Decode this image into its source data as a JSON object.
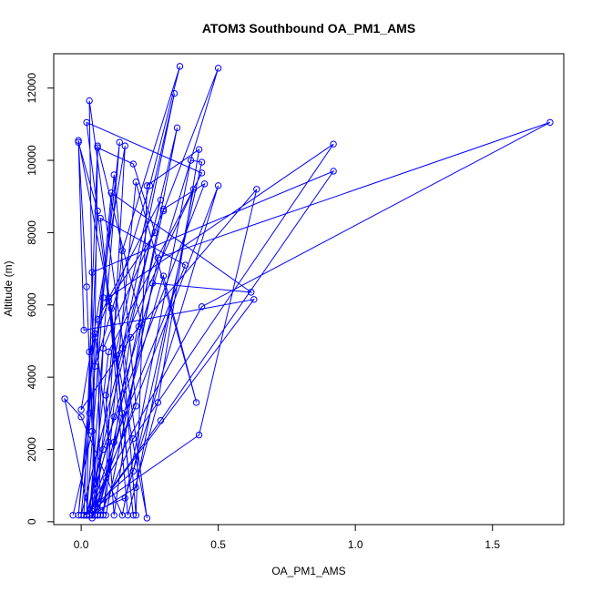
{
  "chart_data": {
    "type": "line",
    "title": "ATOM3 Southbound OA_PM1_AMS",
    "xlabel": "OA_PM1_AMS",
    "ylabel": "Altitude (m)",
    "xlim": [
      -0.1,
      1.76
    ],
    "ylim": [
      -80,
      12950
    ],
    "xticks": [
      0.0,
      0.5,
      1.0,
      1.5
    ],
    "xtick_labels": [
      "0.0",
      "0.5",
      "1.0",
      "1.5"
    ],
    "yticks": [
      0,
      2000,
      4000,
      6000,
      8000,
      10000,
      12000
    ],
    "ytick_labels": [
      "0",
      "2000",
      "4000",
      "6000",
      "8000",
      "10000",
      "12000"
    ],
    "grid": false,
    "legend": "none",
    "colors": {
      "series": "#0000ff"
    },
    "series": [
      {
        "points": [
          [
            -0.03,
            180
          ],
          [
            0.04,
            2500
          ],
          [
            0.02,
            6500
          ],
          [
            -0.01,
            10500
          ],
          [
            0.06,
            8600
          ],
          [
            0.03,
            3000
          ],
          [
            -0.01,
            180
          ],
          [
            0.05,
            5200
          ],
          [
            0.1,
            2200
          ],
          [
            0.02,
            180
          ],
          [
            0.08,
            6200
          ],
          [
            0.12,
            9600
          ],
          [
            0.2,
            3200
          ],
          [
            0.03,
            180
          ],
          [
            0.14,
            10500
          ],
          [
            0.05,
            4300
          ],
          [
            0.25,
            9300
          ],
          [
            0.36,
            12600
          ],
          [
            0.15,
            7500
          ],
          [
            0.05,
            180
          ],
          [
            0.08,
            4800
          ],
          [
            0.3,
            8600
          ],
          [
            0.5,
            12550
          ],
          [
            0.12,
            2900
          ],
          [
            0.03,
            180
          ],
          [
            -0.06,
            3400
          ],
          [
            0.0,
            2900
          ],
          [
            0.15,
            180
          ],
          [
            0.4,
            10000
          ],
          [
            0.44,
            9950
          ],
          [
            0.19,
            1400
          ],
          [
            0.01,
            180
          ],
          [
            0.06,
            10400
          ],
          [
            0.22,
            5500
          ],
          [
            0.12,
            180
          ],
          [
            0.09,
            3500
          ],
          [
            0.34,
            11850
          ],
          [
            0.15,
            4800
          ],
          [
            0.2,
            180
          ],
          [
            0.24,
            9300
          ],
          [
            0.43,
            10300
          ],
          [
            0.28,
            3300
          ],
          [
            0.17,
            180
          ],
          [
            0.1,
            6200
          ],
          [
            0.92,
            10450
          ],
          [
            0.19,
            2300
          ],
          [
            0.07,
            180
          ],
          [
            0.06,
            5600
          ],
          [
            0.29,
            8900
          ],
          [
            0.0,
            180
          ],
          [
            0.11,
            9100
          ],
          [
            0.62,
            6350
          ],
          [
            0.26,
            6600
          ],
          [
            0.09,
            180
          ],
          [
            0.28,
            7300
          ],
          [
            1.71,
            11050
          ],
          [
            0.44,
            5950
          ],
          [
            0.02,
            180
          ],
          [
            0.04,
            6900
          ],
          [
            0.92,
            9700
          ],
          [
            0.29,
            2800
          ],
          [
            0.04,
            180
          ],
          [
            0.5,
            9300
          ],
          [
            0.16,
            650
          ],
          [
            0.01,
            180
          ],
          [
            0.43,
            2400
          ],
          [
            0.64,
            9200
          ],
          [
            0.18,
            5100
          ],
          [
            0.08,
            180
          ],
          [
            0.2,
            9400
          ],
          [
            0.42,
            3300
          ],
          [
            0.3,
            6800
          ],
          [
            0.05,
            180
          ],
          [
            0.03,
            11650
          ],
          [
            0.24,
            100
          ],
          [
            0.13,
            4600
          ],
          [
            0.41,
            9200
          ],
          [
            0.2,
            950
          ],
          [
            0.04,
            180
          ],
          [
            0.63,
            6150
          ],
          [
            0.01,
            5300
          ],
          [
            -0.01,
            10550
          ],
          [
            0.11,
            5900
          ],
          [
            0.19,
            180
          ],
          [
            0.07,
            8400
          ],
          [
            0.38,
            7100
          ],
          [
            0.12,
            2200
          ],
          [
            0.03,
            180
          ],
          [
            0.1,
            4700
          ],
          [
            0.44,
            9650
          ],
          [
            0.02,
            11050
          ],
          [
            0.15,
            3000
          ],
          [
            0.06,
            180
          ],
          [
            0.3,
            8650
          ],
          [
            0.45,
            9350
          ],
          [
            0.08,
            2000
          ],
          [
            0.02,
            180
          ],
          [
            0.35,
            10900
          ],
          [
            0.21,
            5400
          ],
          [
            0.0,
            3100
          ],
          [
            0.16,
            10400
          ],
          [
            0.09,
            1200
          ],
          [
            0.04,
            100
          ],
          [
            0.06,
            10350
          ],
          [
            0.19,
            9900
          ],
          [
            0.27,
            8000
          ],
          [
            0.1,
            6100
          ],
          [
            0.05,
            5100
          ],
          [
            0.03,
            4700
          ],
          [
            0.06,
            180
          ]
        ]
      }
    ]
  }
}
